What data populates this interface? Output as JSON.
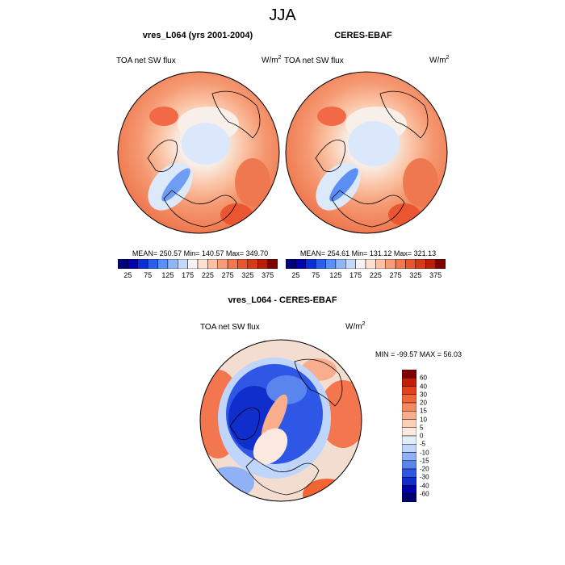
{
  "figure": {
    "title": "JJA",
    "panels": [
      {
        "title": "vres_L064 (yrs 2001-2004)",
        "variable": "TOA net SW flux",
        "units_base": "W/m",
        "units_exp": "2",
        "stats": "MEAN= 250.57  Min= 140.57  Max= 349.70"
      },
      {
        "title": "CERES-EBAF",
        "variable": "TOA net SW flux",
        "units_base": "W/m",
        "units_exp": "2",
        "stats": "MEAN= 254.61  Min= 131.12  Max= 321.13"
      },
      {
        "title": "vres_L064 - CERES-EBAF",
        "variable": "TOA net SW flux",
        "units_base": "W/m",
        "units_exp": "2",
        "stats": "MIN = -99.57 MAX =  56.03"
      }
    ]
  },
  "abs_colorbar": {
    "labels": [
      "25",
      "75",
      "125",
      "175",
      "225",
      "275",
      "325",
      "375"
    ],
    "colors": [
      "#00007a",
      "#0000b0",
      "#0a2fd8",
      "#2a5ef0",
      "#5b8ff4",
      "#8fb6f8",
      "#c4dafc",
      "#f6f3f1",
      "#fde1d0",
      "#fbc1a3",
      "#f89b78",
      "#f3764e",
      "#ea5530",
      "#d83a18",
      "#b81e0a",
      "#7e0000"
    ]
  },
  "diff_colorbar": {
    "labels": [
      "60",
      "40",
      "30",
      "20",
      "15",
      "10",
      "5",
      "0",
      "-5",
      "-10",
      "-15",
      "-20",
      "-30",
      "-40",
      "-60"
    ],
    "colors": [
      "#7e0000",
      "#c41e06",
      "#e2411c",
      "#f06532",
      "#f5895f",
      "#f9ad8c",
      "#fbd0b8",
      "#fbe9e0",
      "#e2edfb",
      "#bfd5fb",
      "#8fb1f6",
      "#5a85ee",
      "#2e57e6",
      "#0f2ecc",
      "#0000a8",
      "#00006e"
    ]
  }
}
